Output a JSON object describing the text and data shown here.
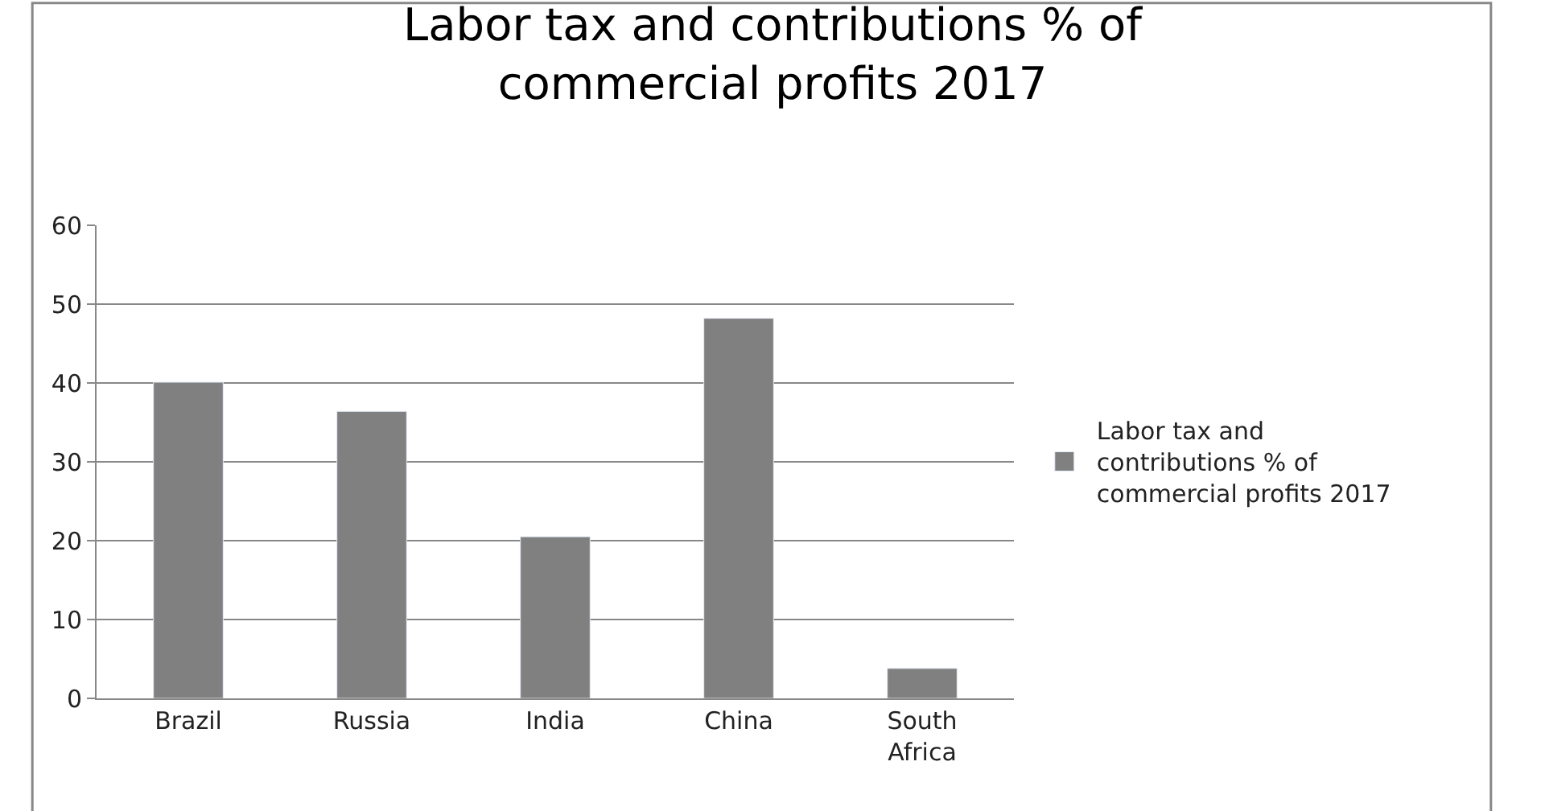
{
  "chart_data": {
    "type": "bar",
    "title": "Labor tax and contributions % of commercial profits 2017",
    "categories": [
      "Brazil",
      "Russia",
      "India",
      "China",
      "South Africa"
    ],
    "series": [
      {
        "name": "Labor tax and contributions % of commercial profits 2017",
        "color": "#808080",
        "values": [
          40.1,
          36.4,
          20.5,
          48.2,
          3.8
        ]
      }
    ],
    "ylim": [
      0,
      60
    ],
    "yticks": [
      0,
      10,
      20,
      30,
      40,
      50,
      60
    ],
    "grid": "y",
    "legend": "right"
  }
}
